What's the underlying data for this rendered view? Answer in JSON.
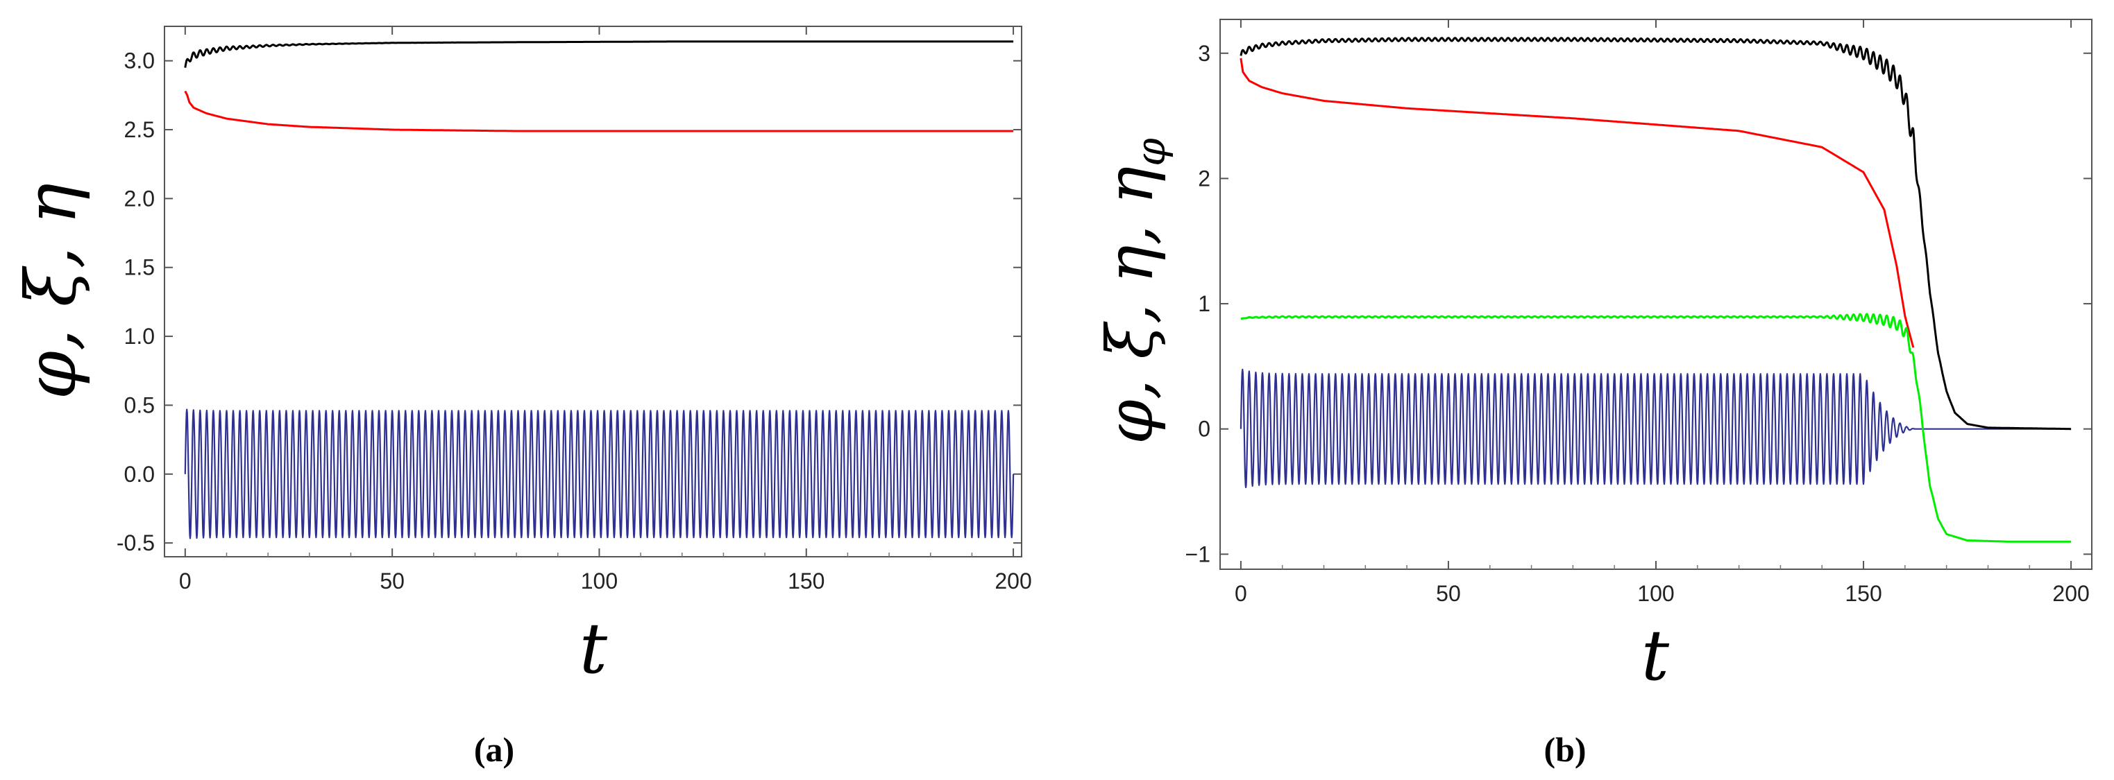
{
  "chart_data": [
    {
      "type": "line",
      "caption": "(a)",
      "xlabel": "t",
      "ylabel": "φ, ξ, η",
      "xlim": [
        -5,
        202
      ],
      "ylim": [
        -0.6,
        3.25
      ],
      "xticks": [
        0,
        50,
        100,
        150,
        200
      ],
      "xtick_labels": [
        "0",
        "50",
        "100",
        "150",
        "200"
      ],
      "yticks": [
        -0.5,
        0.0,
        0.5,
        1.0,
        1.5,
        2.0,
        2.5,
        3.0
      ],
      "ytick_labels": [
        "-0.5",
        "0.0",
        "0.5",
        "1.0",
        "1.5",
        "2.0",
        "2.5",
        "3.0"
      ],
      "series": [
        {
          "name": "φ",
          "color": "#000000",
          "x": [
            0,
            1,
            3,
            6,
            10,
            20,
            30,
            50,
            80,
            120,
            160,
            200
          ],
          "y": [
            2.95,
            3.02,
            3.05,
            3.07,
            3.09,
            3.11,
            3.12,
            3.13,
            3.135,
            3.14,
            3.14,
            3.14
          ],
          "oscillation": {
            "period": 1.6,
            "amp_start": 0.03,
            "decay": 12
          }
        },
        {
          "name": "ξ",
          "color": "#ff0000",
          "x": [
            0,
            0.5,
            1,
            2,
            5,
            10,
            20,
            30,
            50,
            80,
            120,
            200
          ],
          "y": [
            2.78,
            2.75,
            2.7,
            2.66,
            2.62,
            2.58,
            2.54,
            2.52,
            2.5,
            2.49,
            2.49,
            2.49
          ]
        },
        {
          "name": "η",
          "color": "#2e3192",
          "x": [
            0,
            200
          ],
          "y": [
            0,
            0
          ],
          "oscillation": {
            "period": 1.6,
            "amp_start": 0.47,
            "decay": 0,
            "amp_floor": 0.46
          }
        }
      ]
    },
    {
      "type": "line",
      "caption": "(b)",
      "xlabel": "t",
      "ylabel": "φ, ξ, η, η_φ",
      "xlim": [
        -5,
        205
      ],
      "ylim": [
        -1.12,
        3.27
      ],
      "xticks": [
        0,
        50,
        100,
        150,
        200
      ],
      "xtick_labels": [
        "0",
        "50",
        "100",
        "150",
        "200"
      ],
      "yticks": [
        -1,
        0,
        1,
        2,
        3
      ],
      "ytick_labels": [
        "−1",
        "0",
        "1",
        "2",
        "3"
      ],
      "series": [
        {
          "name": "φ",
          "color": "#000000",
          "x": [
            0,
            1,
            5,
            10,
            20,
            40,
            80,
            120,
            140,
            150,
            155,
            158,
            160,
            162,
            164,
            166,
            168,
            170,
            172,
            175,
            180,
            200
          ],
          "y": [
            2.98,
            3.02,
            3.06,
            3.08,
            3.1,
            3.11,
            3.11,
            3.1,
            3.08,
            3.0,
            2.9,
            2.8,
            2.65,
            2.3,
            1.7,
            1.1,
            0.6,
            0.3,
            0.13,
            0.04,
            0.01,
            0.0
          ],
          "oscillation": {
            "period": 1.6,
            "amp_start": 0.03,
            "decay": 0,
            "amp_floor": 0.012,
            "grow_from": 140,
            "grow_to": 162,
            "grow_amp": 0.08
          }
        },
        {
          "name": "ξ",
          "color": "#ff0000",
          "x": [
            0,
            0.5,
            2,
            5,
            10,
            20,
            40,
            80,
            120,
            140,
            150,
            155,
            158,
            160,
            162
          ],
          "y": [
            2.96,
            2.85,
            2.78,
            2.73,
            2.68,
            2.62,
            2.56,
            2.48,
            2.38,
            2.25,
            2.05,
            1.75,
            1.3,
            0.9,
            0.65
          ]
        },
        {
          "name": "η_φ",
          "color": "#00ee00",
          "x": [
            0,
            2,
            10,
            50,
            100,
            140,
            150,
            155,
            158,
            160,
            161,
            162,
            163,
            164,
            165,
            166,
            168,
            170,
            175,
            185,
            200
          ],
          "y": [
            0.88,
            0.89,
            0.895,
            0.895,
            0.895,
            0.895,
            0.89,
            0.87,
            0.84,
            0.78,
            0.7,
            0.55,
            0.35,
            0.1,
            -0.2,
            -0.45,
            -0.72,
            -0.84,
            -0.89,
            -0.9,
            -0.9
          ],
          "oscillation": {
            "period": 1.6,
            "amp_start": 0.0,
            "decay": 0,
            "amp_floor": 0.005,
            "grow_from": 140,
            "grow_to": 161,
            "grow_amp": 0.05
          }
        },
        {
          "name": "η",
          "color": "#2e3192",
          "x": [
            0,
            200
          ],
          "y": [
            0,
            0
          ],
          "oscillation": {
            "period": 1.6,
            "amp_start": 0.48,
            "decay": 0,
            "amp_floor": 0.44,
            "fade_from": 150,
            "fade_to": 163
          }
        }
      ]
    }
  ]
}
